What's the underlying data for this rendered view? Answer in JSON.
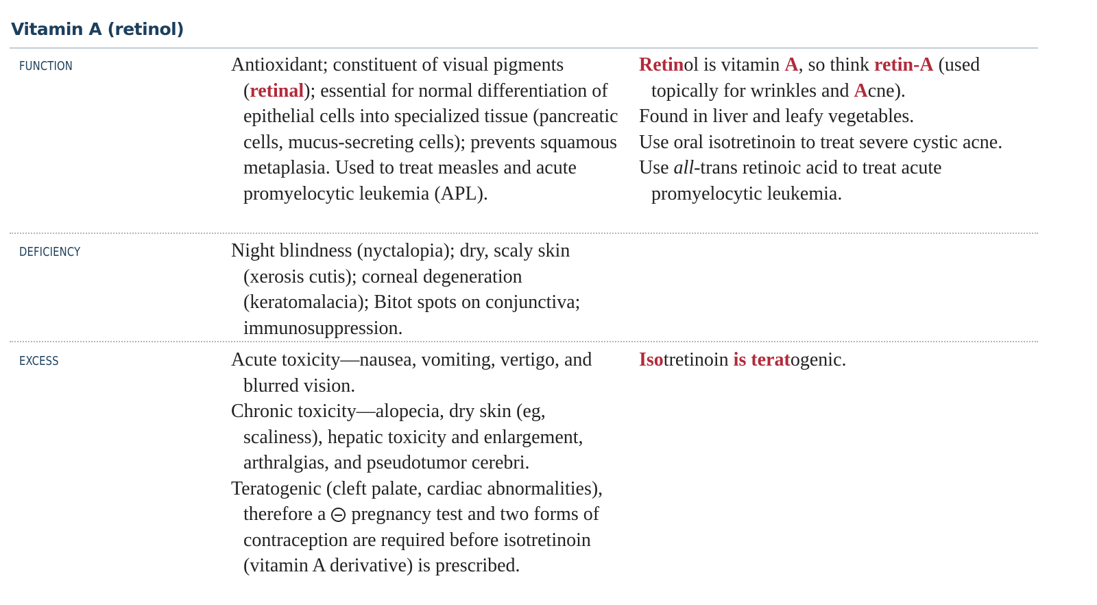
{
  "title": "Vitamin A (retinol)",
  "colors": {
    "heading": "#1c3f5c",
    "highlight": "#b22a3a",
    "text": "#222222",
    "rule": "#aab6c0"
  },
  "rows": {
    "function": {
      "label": "FUNCTION",
      "main": [
        {
          "a": "Antioxidant; constituent of visual pigments (",
          "b": "retinal",
          "c": "); essential for normal differentiation of epithelial cells into specialized tissue (pancreatic cells, mucus-secreting cells); prevents squamous metaplasia. Used to treat measles and acute promyelocytic leukemia (APL)."
        }
      ],
      "notes": [
        {
          "s1": "Retin",
          "s2": "ol is vitamin ",
          "s3": "A",
          "s4": ", so think ",
          "s5": "retin-A",
          "s6": " (used topically for wrinkles and ",
          "s7": "A",
          "s8": "cne)."
        },
        {
          "text": "Found in liver and leafy vegetables."
        },
        {
          "text": "Use oral isotretinoin to treat severe cystic acne."
        },
        {
          "pre": "Use ",
          "italic": "all",
          "post": "-trans retinoic acid to treat acute promyelocytic leukemia."
        }
      ]
    },
    "deficiency": {
      "label": "DEFICIENCY",
      "main": "Night blindness (nyctalopia); dry, scaly skin (xerosis cutis); corneal degeneration (keratomalacia); Bitot spots on conjunctiva; immunosuppression."
    },
    "excess": {
      "label": "EXCESS",
      "main": [
        "Acute toxicity—nausea, vomiting, vertigo, and blurred vision.",
        "Chronic toxicity—alopecia, dry skin (eg, scaliness), hepatic toxicity and enlargement, arthralgias, and pseudotumor cerebri."
      ],
      "teratogenic": {
        "pre": "Teratogenic (cleft palate, cardiac abnormalities), therefore a ",
        "symbol": "minus-circle",
        "post": " pregnancy test and two forms of contraception are required before isotretinoin (vitamin A derivative) is prescribed."
      },
      "note": {
        "s1": "Iso",
        "s2": "tret",
        "s3": "inoin ",
        "s4": "is terat",
        "s5": "ogenic."
      }
    }
  }
}
